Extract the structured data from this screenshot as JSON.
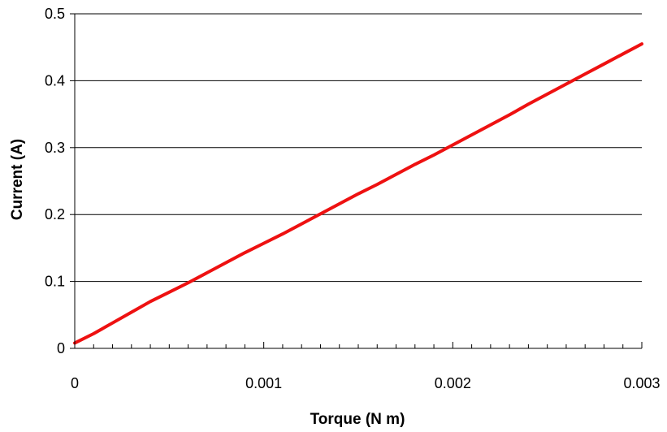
{
  "chart_data": {
    "type": "line",
    "title": "",
    "xlabel": "Torque (N m)",
    "ylabel": "Current (A)",
    "xlim": [
      0,
      0.003
    ],
    "ylim": [
      0,
      0.5
    ],
    "x_ticks": [
      "0",
      "0.001",
      "0.002",
      "0.003"
    ],
    "y_ticks": [
      "0",
      "0.1",
      "0.2",
      "0.3",
      "0.4",
      "0.5"
    ],
    "x_tick_values": [
      0,
      0.001,
      0.002,
      0.003
    ],
    "y_tick_values": [
      0,
      0.1,
      0.2,
      0.3,
      0.4,
      0.5
    ],
    "x_minor_step": 0.0001,
    "grid": {
      "horizontal": true,
      "vertical": false
    },
    "series": [
      {
        "color": "#ee1111",
        "x": [
          0,
          0.0001,
          0.0002,
          0.0003,
          0.0004,
          0.0005,
          0.0006,
          0.0007,
          0.0008,
          0.0009,
          0.001,
          0.0011,
          0.0012,
          0.0013,
          0.0014,
          0.0015,
          0.0016,
          0.0017,
          0.0018,
          0.0019,
          0.002,
          0.0021,
          0.0022,
          0.0023,
          0.0024,
          0.0025,
          0.0026,
          0.0027,
          0.0028,
          0.0029,
          0.003
        ],
        "y": [
          0.008,
          0.022,
          0.038,
          0.054,
          0.07,
          0.084,
          0.098,
          0.113,
          0.128,
          0.143,
          0.157,
          0.171,
          0.186,
          0.201,
          0.216,
          0.231,
          0.245,
          0.26,
          0.275,
          0.289,
          0.304,
          0.319,
          0.334,
          0.349,
          0.365,
          0.38,
          0.395,
          0.41,
          0.425,
          0.44,
          0.455
        ]
      }
    ]
  }
}
